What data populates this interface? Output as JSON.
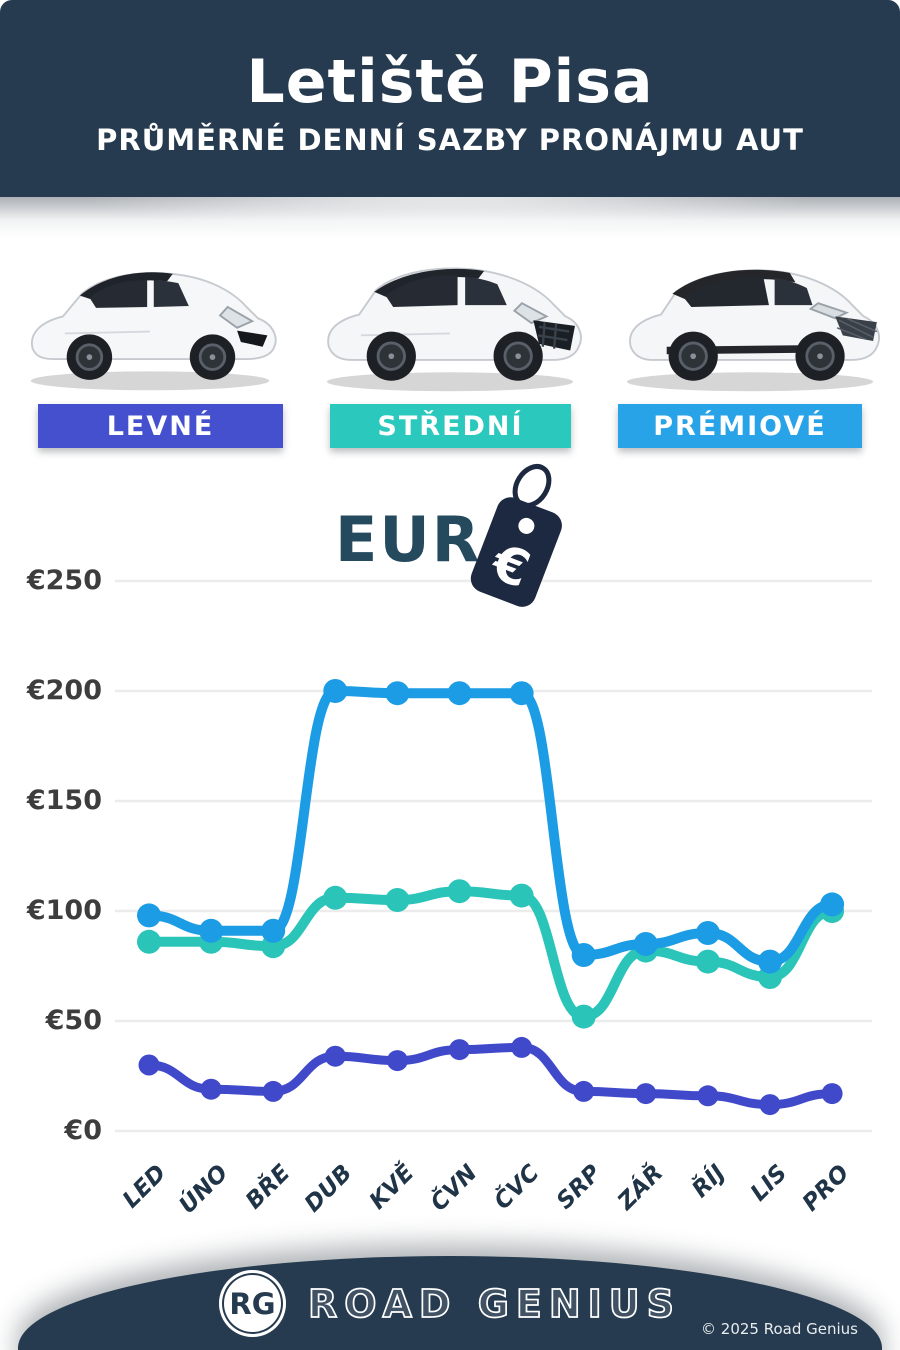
{
  "header": {
    "title": "Letiště Pisa",
    "subtitle": "PRŮMĚRNÉ DENNÍ SAZBY PRONÁJMU AUT",
    "bg_color": "#263B4F"
  },
  "cars": [
    {
      "icon": "economy-hatchback-car-icon"
    },
    {
      "icon": "midsize-suv-car-icon"
    },
    {
      "icon": "premium-suv-car-icon"
    }
  ],
  "categories_bar": {
    "items": [
      {
        "label": "LEVNÉ",
        "color": "#4450CE"
      },
      {
        "label": "STŘEDNÍ",
        "color": "#2BC8BE"
      },
      {
        "label": "PRÉMIOVÉ",
        "color": "#29A3E8"
      }
    ]
  },
  "currency": {
    "label": "EUR",
    "symbol": "€",
    "icon": "price-tag-icon",
    "tag_color": "#1D2940"
  },
  "chart_data": {
    "type": "line",
    "title": "",
    "xlabel": "",
    "ylabel": "",
    "categories": [
      "LED",
      "ÚNO",
      "BŘE",
      "DUB",
      "KVĚ",
      "ČVN",
      "ČVC",
      "SRP",
      "ZÁŘ",
      "ŘÍJ",
      "LIS",
      "PRO"
    ],
    "ytick_prefix": "€",
    "yticks": [
      0,
      50,
      100,
      150,
      200,
      250
    ],
    "ylim": [
      0,
      250
    ],
    "grid": true,
    "legend_position": "none",
    "series": [
      {
        "name": "LEVNÉ",
        "color": "#4149CB",
        "values": [
          30,
          19,
          18,
          34,
          32,
          37,
          38,
          18,
          17,
          16,
          12,
          17
        ]
      },
      {
        "name": "STŘEDNÍ",
        "color": "#2BC4B8",
        "values": [
          86,
          86,
          84,
          106,
          105,
          109,
          107,
          52,
          82,
          77,
          70,
          100
        ]
      },
      {
        "name": "PRÉMIOVÉ",
        "color": "#1B9CE4",
        "values": [
          98,
          91,
          91,
          200,
          199,
          199,
          199,
          80,
          85,
          90,
          77,
          103
        ]
      }
    ]
  },
  "footer": {
    "logo_text": "RG",
    "brand": "ROAD GENIUS",
    "copyright": "© 2025 Road Genius",
    "bg_color": "#263B4F"
  }
}
